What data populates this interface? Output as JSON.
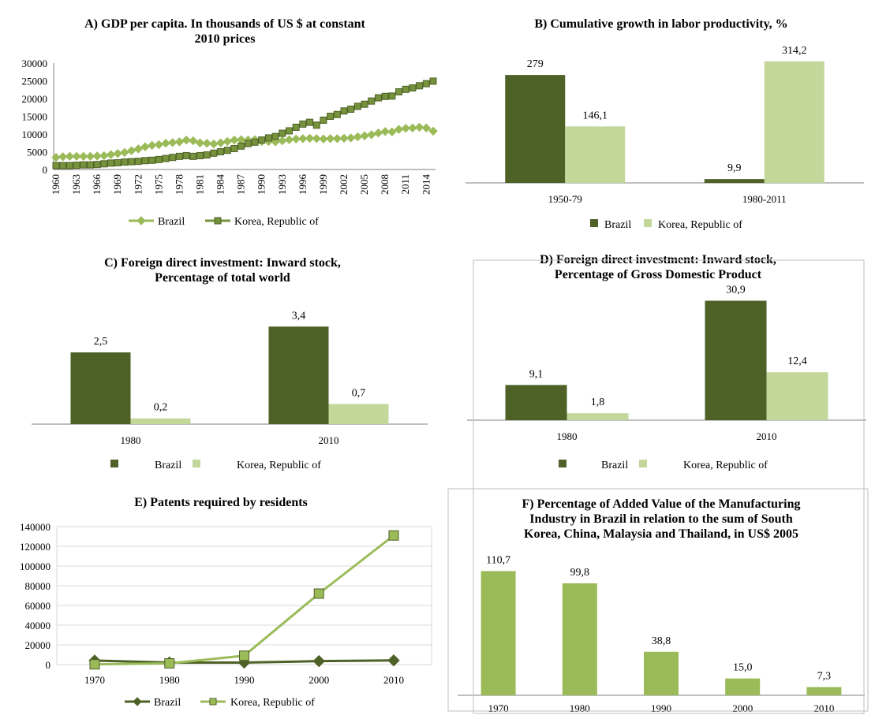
{
  "colors": {
    "dark_green": "#4e6127",
    "light_green": "#c4d79b",
    "mid_green": "#9bbb59",
    "axis": "#808080",
    "grid": "#000000"
  },
  "chart_data": [
    {
      "id": "A",
      "type": "line",
      "title_lines": [
        "A) GDP per capita. In thousands of US $ at constant",
        "2010 prices"
      ],
      "x": [
        1960,
        1961,
        1962,
        1963,
        1964,
        1965,
        1966,
        1967,
        1968,
        1969,
        1970,
        1971,
        1972,
        1973,
        1974,
        1975,
        1976,
        1977,
        1978,
        1979,
        1980,
        1981,
        1982,
        1983,
        1984,
        1985,
        1986,
        1987,
        1988,
        1989,
        1990,
        1991,
        1992,
        1993,
        1994,
        1995,
        1996,
        1997,
        1998,
        1999,
        2000,
        2001,
        2002,
        2003,
        2004,
        2005,
        2006,
        2007,
        2008,
        2009,
        2010,
        2011,
        2012,
        2013,
        2014,
        2015
      ],
      "xtick_labels": [
        "1960",
        "1963",
        "1966",
        "1969",
        "1972",
        "1975",
        "1978",
        "1981",
        "1984",
        "1987",
        "1990",
        "1993",
        "1996",
        "1999",
        "2002",
        "2005",
        "2008",
        "2011",
        "2014"
      ],
      "yticks": [
        "0",
        "5000",
        "10000",
        "15000",
        "20000",
        "25000",
        "30000"
      ],
      "ylim": [
        0,
        30000
      ],
      "series": [
        {
          "name": "Brazil",
          "color": "#9bbb59",
          "marker": "diamond",
          "values": [
            3400,
            3600,
            3700,
            3700,
            3700,
            3700,
            3800,
            3900,
            4200,
            4500,
            4800,
            5300,
            5800,
            6400,
            6800,
            7000,
            7400,
            7600,
            7800,
            8300,
            8100,
            7500,
            7400,
            7200,
            7500,
            7900,
            8300,
            8400,
            8300,
            8400,
            7900,
            7900,
            7800,
            8100,
            8400,
            8600,
            8700,
            8800,
            8700,
            8600,
            8700,
            8700,
            8800,
            8900,
            9200,
            9500,
            9800,
            10300,
            10700,
            10600,
            11300,
            11600,
            11700,
            11900,
            11700,
            10800
          ]
        },
        {
          "name": "Korea, Republic of",
          "color": "#76923c",
          "marker": "square",
          "values": [
            1100,
            1100,
            1100,
            1200,
            1300,
            1300,
            1400,
            1600,
            1800,
            1900,
            2100,
            2200,
            2300,
            2500,
            2600,
            2800,
            3100,
            3400,
            3700,
            3900,
            3700,
            3900,
            4100,
            4600,
            5000,
            5400,
            5900,
            6600,
            7300,
            7700,
            8300,
            8900,
            9300,
            10200,
            10900,
            11900,
            12800,
            13300,
            12500,
            13900,
            15000,
            15500,
            16500,
            17000,
            17800,
            18400,
            19300,
            20200,
            20600,
            20700,
            21900,
            22600,
            23000,
            23600,
            24200,
            24900
          ]
        }
      ]
    },
    {
      "id": "B",
      "type": "bar",
      "title_lines": [
        "B) Cumulative growth in labor productivity, %"
      ],
      "categories": [
        "1950-79",
        "1980-2011"
      ],
      "series": [
        {
          "name": "Brazil",
          "color": "#4e6127",
          "values": [
            279,
            9.9
          ],
          "labels": [
            "279",
            "9,9"
          ]
        },
        {
          "name": "Korea, Republic of",
          "color": "#c4d79b",
          "values": [
            146.1,
            314.2
          ],
          "labels": [
            "146,1",
            "314,2"
          ]
        }
      ],
      "ylim": [
        0,
        320
      ]
    },
    {
      "id": "C",
      "type": "bar",
      "title_lines": [
        "C) Foreign direct investment: Inward  stock,",
        "Percentage of total world"
      ],
      "categories": [
        "1980",
        "2010"
      ],
      "series": [
        {
          "name": "Brazil",
          "color": "#4e6127",
          "values": [
            2.5,
            3.4
          ],
          "labels": [
            "2,5",
            "3,4"
          ]
        },
        {
          "name": "Korea, Republic of",
          "color": "#c4d79b",
          "values": [
            0.2,
            0.7
          ],
          "labels": [
            "0,2",
            "0,7"
          ]
        }
      ],
      "ylim": [
        0,
        3.6
      ]
    },
    {
      "id": "D",
      "type": "bar",
      "title_lines": [
        "D) Foreign direct investment: Inward stock,",
        "Percentage of Gross Domestic Product"
      ],
      "categories": [
        "1980",
        "2010"
      ],
      "series": [
        {
          "name": "Brazil",
          "color": "#4e6127",
          "values": [
            9.1,
            30.9
          ],
          "labels": [
            "9,1",
            "30,9"
          ]
        },
        {
          "name": "Korea, Republic of",
          "color": "#c4d79b",
          "values": [
            1.8,
            12.4
          ],
          "labels": [
            "1,8",
            "12,4"
          ]
        }
      ],
      "ylim": [
        0,
        31
      ]
    },
    {
      "id": "E",
      "type": "line",
      "title_lines": [
        "E) Patents required by residents"
      ],
      "x": [
        1970,
        1980,
        1990,
        2000,
        2010
      ],
      "xtick_labels": [
        "1970",
        "1980",
        "1990",
        "2000",
        "2010"
      ],
      "yticks": [
        "0",
        "20000",
        "40000",
        "60000",
        "80000",
        "100000",
        "120000",
        "140000"
      ],
      "ylim": [
        0,
        140000
      ],
      "series": [
        {
          "name": "Brazil",
          "color": "#4e6127",
          "marker": "diamond",
          "values": [
            4000,
            2000,
            2000,
            3500,
            4200
          ]
        },
        {
          "name": "Korea, Republic of",
          "color": "#9bbb59",
          "marker": "square",
          "values": [
            200,
            1200,
            9000,
            72000,
            131000
          ]
        }
      ]
    },
    {
      "id": "F",
      "type": "bar",
      "title_lines": [
        "F) Percentage of Added Value of the Manufacturing",
        "Industry in Brazil in relation to the sum of South",
        "Korea, China, Malaysia and Thailand, in US$ 2005"
      ],
      "categories": [
        "1970",
        "1980",
        "1990",
        "2000",
        "2010"
      ],
      "series": [
        {
          "color": "#9bbb59",
          "values": [
            110.7,
            99.8,
            38.8,
            15.0,
            7.3
          ],
          "labels": [
            "110,7",
            "99,8",
            "38,8",
            "15,0",
            "7,3"
          ]
        }
      ],
      "ylim": [
        0,
        111
      ]
    }
  ]
}
